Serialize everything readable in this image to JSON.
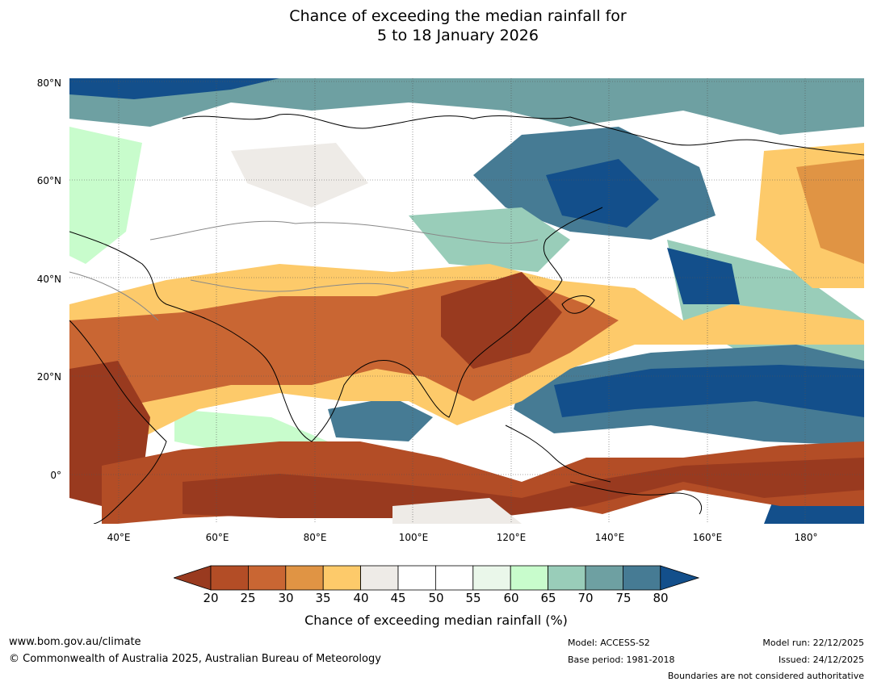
{
  "title": {
    "line1": "Chance of exceeding the median rainfall for",
    "line2": "5 to 18 January 2026"
  },
  "map": {
    "latitude_labels": [
      {
        "text": "80°N",
        "lat": 80
      },
      {
        "text": "60°N",
        "lat": 60
      },
      {
        "text": "40°N",
        "lat": 40
      },
      {
        "text": "20°N",
        "lat": 20
      },
      {
        "text": "0°",
        "lat": 0
      }
    ],
    "longitude_labels": [
      {
        "text": "40°E",
        "lon": 40
      },
      {
        "text": "60°E",
        "lon": 60
      },
      {
        "text": "80°E",
        "lon": 80
      },
      {
        "text": "100°E",
        "lon": 100
      },
      {
        "text": "120°E",
        "lon": 120
      },
      {
        "text": "140°E",
        "lon": 140
      },
      {
        "text": "160°E",
        "lon": 160
      },
      {
        "text": "180°",
        "lon": 180
      }
    ],
    "extent": {
      "lon_min": 30,
      "lon_max": 192,
      "lat_min": -10,
      "lat_max": 81
    }
  },
  "colorbar": {
    "title": "Chance of exceeding median rainfall (%)",
    "ticks": [
      "20",
      "25",
      "30",
      "35",
      "40",
      "45",
      "50",
      "55",
      "60",
      "65",
      "70",
      "75",
      "80"
    ],
    "colors": [
      "#993a1f",
      "#b34d26",
      "#c96633",
      "#e09444",
      "#fdca6a",
      "#eeebe7",
      "#ffffff",
      "#ffffff",
      "#eaf7ea",
      "#c8fccc",
      "#99cdb9",
      "#6ea0a2",
      "#467b94",
      "#134f8b"
    ]
  },
  "footer": {
    "website": "www.bom.gov.au/climate",
    "copyright": "© Commonwealth of Australia 2025, Australian Bureau of Meteorology",
    "model": "Model: ACCESS-S2",
    "base_period": "Base period: 1981-2018",
    "model_run": "Model run: 22/12/2025",
    "issued": "Issued: 24/12/2025",
    "disclaimer": "Boundaries are not considered authoritative"
  }
}
